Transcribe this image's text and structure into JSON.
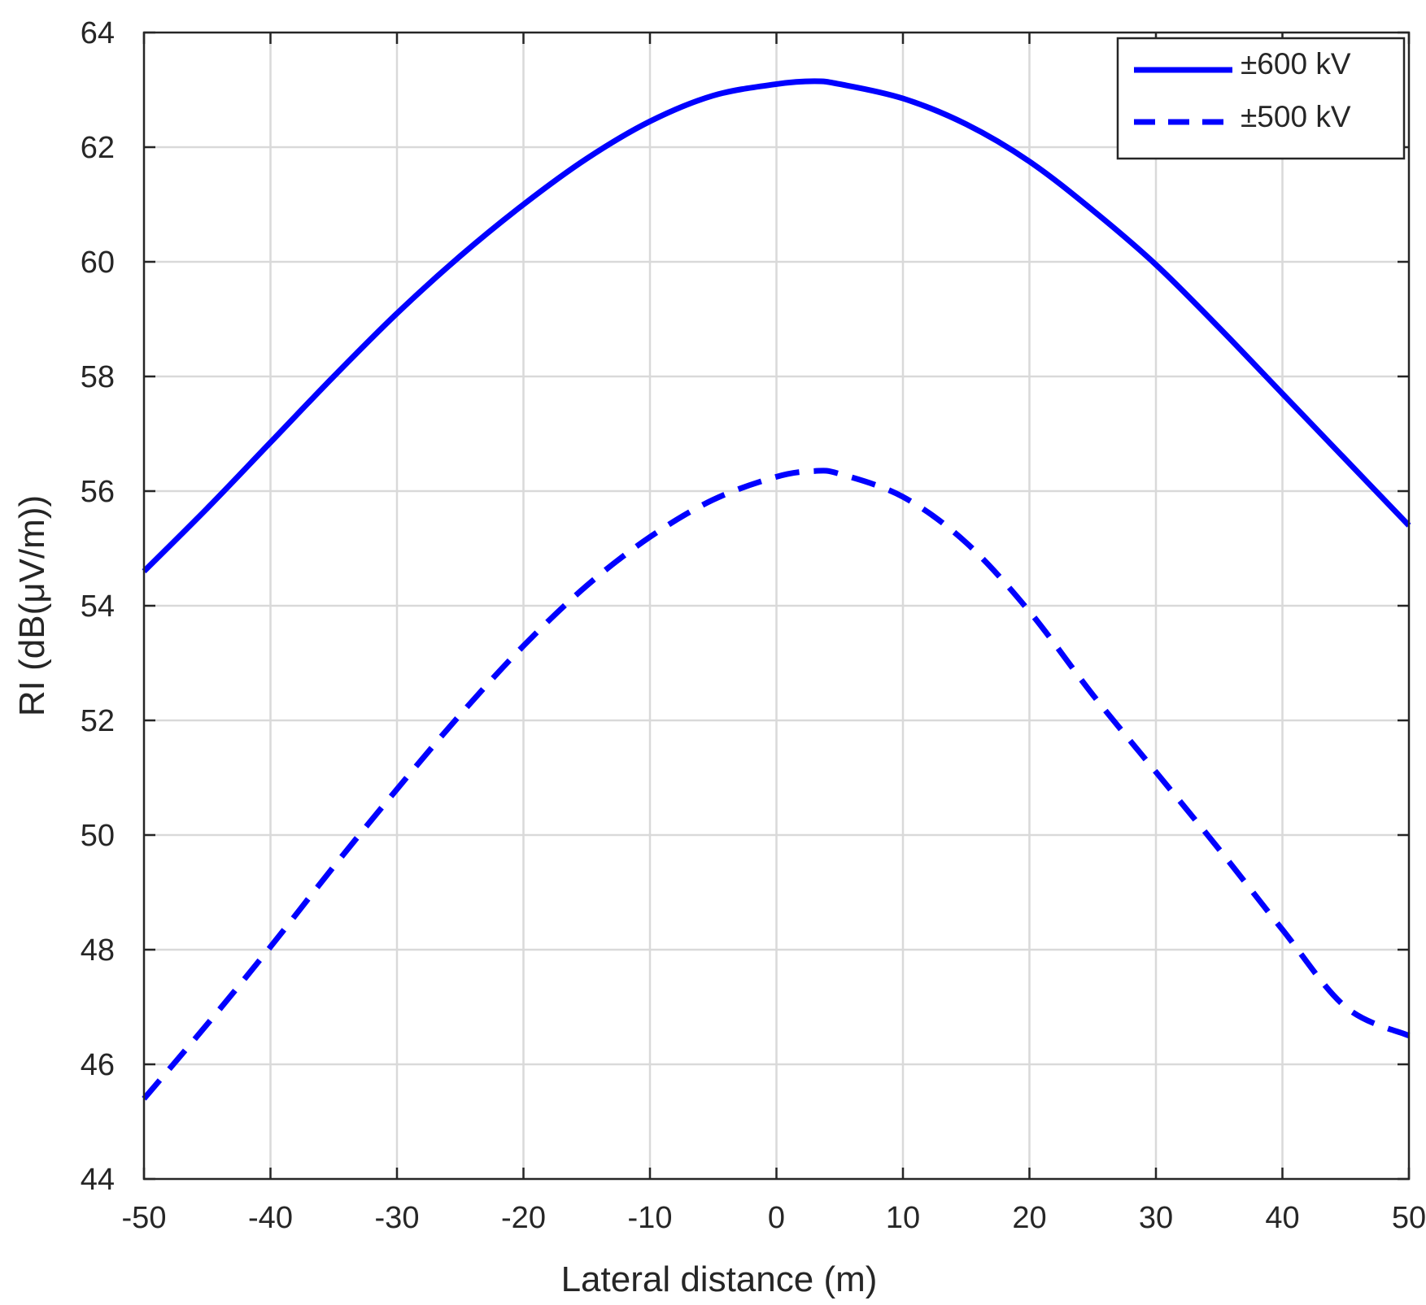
{
  "chart_data": {
    "type": "line",
    "xlabel": "Lateral distance (m)",
    "ylabel": "RI (dB(μV/m))",
    "xlim": [
      -50,
      50
    ],
    "ylim": [
      44,
      64
    ],
    "xticks": [
      "-50",
      "-40",
      "-30",
      "-20",
      "-10",
      "0",
      "10",
      "20",
      "30",
      "40",
      "50"
    ],
    "yticks": [
      "44",
      "46",
      "48",
      "50",
      "52",
      "54",
      "56",
      "58",
      "60",
      "62",
      "64"
    ],
    "grid": true,
    "legend_position": "top-right",
    "series": [
      {
        "name": "±600 kV",
        "style": "solid",
        "color": "#0000ff",
        "x": [
          -50,
          -45,
          -40,
          -35,
          -30,
          -25,
          -20,
          -15,
          -10,
          -5,
          0,
          3,
          5,
          10,
          15,
          20,
          25,
          30,
          35,
          40,
          45,
          50
        ],
        "y": [
          54.6,
          55.7,
          56.85,
          58.0,
          59.1,
          60.1,
          61.0,
          61.8,
          62.45,
          62.9,
          63.1,
          63.15,
          63.1,
          62.85,
          62.4,
          61.75,
          60.9,
          59.95,
          58.85,
          57.7,
          56.55,
          55.4
        ]
      },
      {
        "name": "±500 kV",
        "style": "dashed",
        "color": "#0000ff",
        "x": [
          -50,
          -45,
          -40,
          -35,
          -30,
          -25,
          -20,
          -15,
          -10,
          -5,
          0,
          3,
          5,
          10,
          15,
          20,
          25,
          30,
          35,
          40,
          45,
          50
        ],
        "y": [
          45.4,
          46.7,
          48.05,
          49.45,
          50.8,
          52.1,
          53.3,
          54.35,
          55.2,
          55.85,
          56.25,
          56.35,
          56.3,
          55.9,
          55.1,
          53.9,
          52.45,
          51.1,
          49.75,
          48.35,
          47.0,
          46.5
        ]
      }
    ]
  }
}
